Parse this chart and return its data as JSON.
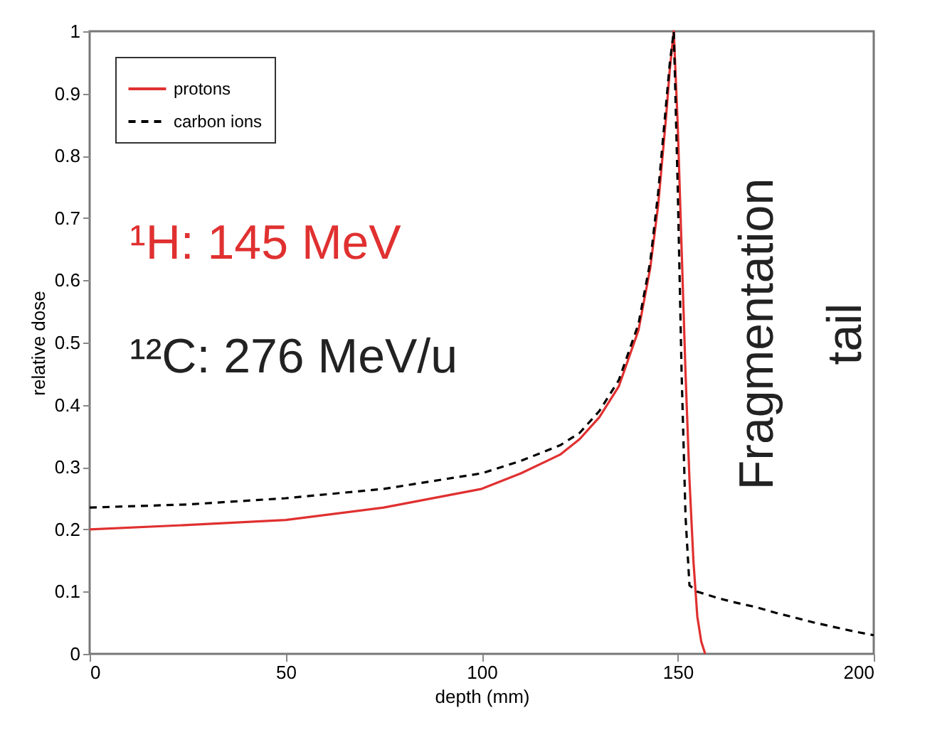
{
  "chart_data": {
    "type": "line",
    "xlabel": "depth (mm)",
    "ylabel": "relative dose",
    "xlim": [
      0,
      200
    ],
    "ylim": [
      0,
      1
    ],
    "xticks": [
      0,
      50,
      100,
      150,
      200
    ],
    "yticks": [
      {
        "value": 0,
        "label": "0"
      },
      0.1,
      0.2,
      0.3,
      0.4,
      0.5,
      0.6,
      0.7,
      0.8,
      0.9,
      {
        "value": 1,
        "label": "1"
      }
    ],
    "grid": false,
    "legend": "top left",
    "marker": "none",
    "series": [
      {
        "name": "protons",
        "color": "#e03030",
        "line_style": "solid",
        "x": [
          0,
          25,
          50,
          75,
          100,
          110,
          120,
          125,
          130,
          135,
          140,
          143,
          145,
          147,
          148,
          149,
          150,
          151,
          152,
          153,
          154,
          155,
          156,
          157
        ],
        "values": [
          0.2,
          0.207,
          0.215,
          0.235,
          0.265,
          0.29,
          0.32,
          0.345,
          0.38,
          0.43,
          0.52,
          0.62,
          0.72,
          0.86,
          0.94,
          1.0,
          0.85,
          0.65,
          0.45,
          0.28,
          0.15,
          0.06,
          0.02,
          0
        ]
      },
      {
        "name": "carbon ions",
        "color": "#000000",
        "line_style": "dashed",
        "x": [
          0,
          25,
          50,
          75,
          100,
          110,
          120,
          125,
          130,
          135,
          140,
          143,
          145,
          147,
          148,
          149,
          150,
          151,
          152,
          153,
          155,
          160,
          165,
          170,
          175,
          180,
          185,
          190,
          195,
          200
        ],
        "values": [
          0.235,
          0.24,
          0.25,
          0.265,
          0.29,
          0.31,
          0.335,
          0.355,
          0.39,
          0.44,
          0.53,
          0.63,
          0.74,
          0.88,
          0.95,
          1.0,
          0.75,
          0.45,
          0.22,
          0.11,
          0.1,
          0.09,
          0.082,
          0.075,
          0.066,
          0.058,
          0.05,
          0.043,
          0.036,
          0.03
        ]
      }
    ],
    "annotations": [
      "¹H: 145 MeV",
      "¹²C: 276 MeV/u",
      "Fragmentation tail"
    ]
  }
}
